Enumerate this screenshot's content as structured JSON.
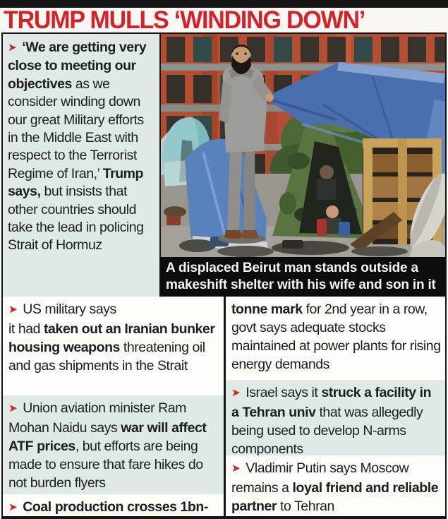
{
  "masthead": {
    "title": "TRUMP MULLS ‘WINDING DOWN’"
  },
  "glyphs": {
    "bullet": "➤"
  },
  "colors": {
    "accent_red": "#d6202a",
    "bullet_red": "#cf2127",
    "panel_bg": "#dfe9e6",
    "white_block": "#fcfcf9",
    "caption_bg": "#0c0c0c",
    "text": "#1c1e1f",
    "border": "#151515"
  },
  "lead_item": {
    "bullet": true,
    "segments": [
      {
        "t": "‘We are getting very close to meeting our objectives",
        "b": true
      },
      {
        "t": " as we consider winding down our great Military efforts in the Middle East with respect to the Terrorist Regime of Iran,’ ",
        "b": false
      },
      {
        "t": "Trump says,",
        "b": true
      },
      {
        "t": " but insists that other countries should take the lead in policing Strait of Hormuz",
        "b": false
      }
    ]
  },
  "photo": {
    "alt": "A man in a grey hoodie holds a blue tarpaulin over a makeshift shelter of tents and a wooden pallet, apartment building and trees behind",
    "caption_lines": [
      "A displaced Beirut man stands outside  a",
      "makeshift shelter with his wife and son in it"
    ]
  },
  "columns": {
    "left": [
      {
        "bullet": true,
        "bg": "white",
        "segments": [
          {
            "t": "US military says",
            "b": false
          },
          {
            "br": true
          },
          {
            "t": "it had ",
            "b": false
          },
          {
            "t": "taken out an Iranian bunker housing weapons",
            "b": true
          },
          {
            "t": " threatening oil and gas shipments in the Strait",
            "b": false
          }
        ]
      },
      {
        "bullet": true,
        "bg": "pale",
        "segments": [
          {
            "t": "Union aviation minister Ram Mohan Naidu says ",
            "b": false
          },
          {
            "t": "war will affect ATF prices",
            "b": true
          },
          {
            "t": ", but efforts are being made to ensure that fare hikes do not burden flyers",
            "b": false
          }
        ]
      },
      {
        "bullet": true,
        "bg": "white",
        "segments": [
          {
            "t": "Coal production crosses 1bn-",
            "b": true
          }
        ]
      }
    ],
    "right": [
      {
        "bullet": false,
        "bg": "white",
        "segments": [
          {
            "t": "tonne mark",
            "b": true
          },
          {
            "t": " for 2nd year in a row, govt says adequate stocks maintained at power plants for rising energy demands",
            "b": false
          }
        ]
      },
      {
        "bullet": true,
        "bg": "pale",
        "segments": [
          {
            "t": "Israel says it ",
            "b": false
          },
          {
            "t": "struck a facility in a Tehran univ",
            "b": true
          },
          {
            "t": " that was allegedly being used to develop N-arms components",
            "b": false
          }
        ]
      },
      {
        "bullet": true,
        "bg": "white",
        "segments": [
          {
            "t": "Vladimir Putin says Moscow remains a ",
            "b": false
          },
          {
            "t": "loyal friend and reliable partner",
            "b": true
          },
          {
            "t": " to Tehran",
            "b": false
          }
        ]
      }
    ]
  }
}
